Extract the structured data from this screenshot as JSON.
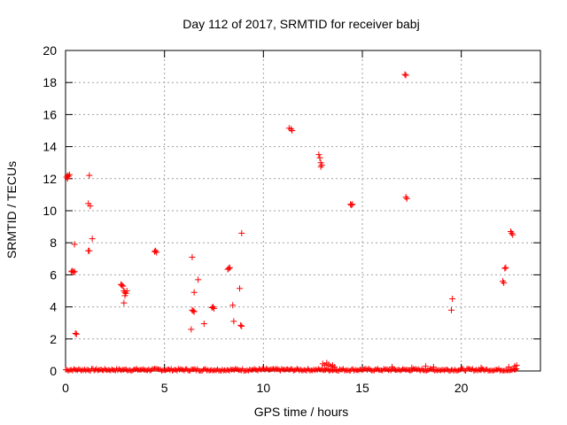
{
  "chart_data": {
    "type": "scatter",
    "title": "Day 112 of 2017, SRMTID for receiver babj",
    "xlabel": "GPS time / hours",
    "ylabel": "SRMTID / TECUs",
    "xlim": [
      0,
      24
    ],
    "ylim": [
      0,
      20
    ],
    "x_ticks": [
      0,
      5,
      10,
      15,
      20
    ],
    "y_ticks": [
      0,
      2,
      4,
      6,
      8,
      10,
      12,
      14,
      16,
      18,
      20
    ],
    "grid": true,
    "marker": "+",
    "color": "#ff0000",
    "series": [
      {
        "name": "SRMTID",
        "points": [
          [
            0.05,
            12.1
          ],
          [
            0.1,
            12.2
          ],
          [
            0.15,
            12.15
          ],
          [
            0.2,
            12.25
          ],
          [
            0.1,
            12.0
          ],
          [
            0.3,
            6.2
          ],
          [
            0.35,
            6.25
          ],
          [
            0.4,
            6.15
          ],
          [
            0.45,
            6.2
          ],
          [
            0.45,
            7.9
          ],
          [
            0.5,
            2.35
          ],
          [
            0.55,
            2.3
          ],
          [
            1.2,
            12.2
          ],
          [
            1.15,
            10.45
          ],
          [
            1.25,
            10.3
          ],
          [
            1.2,
            7.5
          ],
          [
            1.15,
            7.5
          ],
          [
            1.35,
            8.25
          ],
          [
            2.8,
            5.4
          ],
          [
            2.85,
            5.35
          ],
          [
            2.9,
            5.3
          ],
          [
            2.95,
            5.0
          ],
          [
            3.0,
            4.9
          ],
          [
            3.05,
            4.85
          ],
          [
            3.0,
            4.7
          ],
          [
            3.1,
            5.0
          ],
          [
            2.95,
            4.25
          ],
          [
            4.5,
            7.45
          ],
          [
            4.55,
            7.5
          ],
          [
            4.6,
            7.4
          ],
          [
            6.4,
            7.1
          ],
          [
            6.5,
            4.9
          ],
          [
            6.7,
            5.7
          ],
          [
            6.4,
            3.8
          ],
          [
            6.45,
            3.75
          ],
          [
            6.5,
            3.7
          ],
          [
            6.35,
            2.6
          ],
          [
            7.0,
            2.95
          ],
          [
            7.4,
            3.95
          ],
          [
            7.45,
            4.0
          ],
          [
            7.5,
            3.9
          ],
          [
            8.2,
            6.35
          ],
          [
            8.3,
            6.45
          ],
          [
            8.25,
            6.4
          ],
          [
            8.45,
            4.1
          ],
          [
            8.5,
            3.1
          ],
          [
            8.8,
            5.15
          ],
          [
            8.9,
            8.6
          ],
          [
            8.85,
            2.85
          ],
          [
            8.9,
            2.8
          ],
          [
            11.3,
            15.15
          ],
          [
            11.4,
            15.1
          ],
          [
            11.45,
            15.0
          ],
          [
            12.8,
            13.5
          ],
          [
            12.85,
            13.3
          ],
          [
            12.9,
            13.0
          ],
          [
            12.95,
            12.85
          ],
          [
            12.9,
            12.75
          ],
          [
            14.4,
            10.4
          ],
          [
            14.45,
            10.35
          ],
          [
            14.5,
            10.4
          ],
          [
            17.15,
            18.5
          ],
          [
            17.2,
            18.45
          ],
          [
            17.2,
            10.85
          ],
          [
            17.25,
            10.75
          ],
          [
            19.55,
            4.5
          ],
          [
            19.5,
            3.8
          ],
          [
            22.1,
            5.6
          ],
          [
            22.15,
            5.5
          ],
          [
            22.2,
            6.4
          ],
          [
            22.25,
            6.45
          ],
          [
            22.5,
            8.7
          ],
          [
            22.55,
            8.6
          ],
          [
            22.6,
            8.5
          ],
          [
            13.0,
            0.45
          ],
          [
            13.1,
            0.35
          ],
          [
            13.2,
            0.5
          ],
          [
            13.3,
            0.4
          ],
          [
            13.4,
            0.3
          ],
          [
            13.5,
            0.35
          ],
          [
            13.6,
            0.25
          ],
          [
            16.5,
            0.25
          ],
          [
            17.5,
            0.2
          ],
          [
            18.2,
            0.3
          ],
          [
            18.6,
            0.25
          ],
          [
            21.0,
            0.2
          ],
          [
            22.4,
            0.25
          ],
          [
            22.7,
            0.3
          ],
          [
            22.8,
            0.35
          ]
        ],
        "baseline": {
          "x_start": 0,
          "x_end": 22.8,
          "y_min": 0.0,
          "y_max": 0.15
        }
      }
    ]
  }
}
